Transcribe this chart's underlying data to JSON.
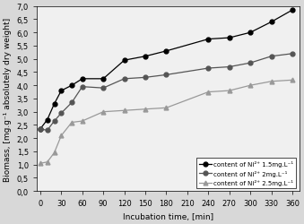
{
  "series": [
    {
      "label": "content of Ni²⁺ 1.5mg.L⁻¹",
      "color": "#000000",
      "marker": "o",
      "markersize": 3.5,
      "x": [
        0,
        10,
        20,
        30,
        45,
        60,
        90,
        120,
        150,
        180,
        240,
        270,
        300,
        330,
        360
      ],
      "y": [
        2.35,
        2.7,
        3.3,
        3.8,
        4.0,
        4.25,
        4.25,
        4.95,
        5.1,
        5.3,
        5.75,
        5.8,
        6.0,
        6.4,
        6.85
      ]
    },
    {
      "label": "content of Ni²⁺ 2mg.L⁻¹",
      "color": "#555555",
      "marker": "o",
      "markersize": 3.5,
      "x": [
        0,
        10,
        20,
        30,
        45,
        60,
        90,
        120,
        150,
        180,
        240,
        270,
        300,
        330,
        360
      ],
      "y": [
        2.35,
        2.3,
        2.65,
        2.95,
        3.35,
        3.95,
        3.9,
        4.25,
        4.3,
        4.4,
        4.65,
        4.7,
        4.85,
        5.1,
        5.2
      ]
    },
    {
      "label": "content of Ni²⁺ 2.5mg.L⁻¹",
      "color": "#999999",
      "marker": "^",
      "markersize": 3.5,
      "x": [
        0,
        10,
        20,
        30,
        45,
        60,
        90,
        120,
        150,
        180,
        240,
        270,
        300,
        330,
        360
      ],
      "y": [
        1.05,
        1.1,
        1.45,
        2.1,
        2.6,
        2.65,
        3.0,
        3.05,
        3.1,
        3.15,
        3.75,
        3.8,
        4.0,
        4.15,
        4.2
      ]
    }
  ],
  "xlabel": "Incubation time, [min]",
  "ylabel": "Biomass, [mg.g⁻¹ absolutely dry weight]",
  "xlim": [
    -5,
    370
  ],
  "ylim": [
    0.0,
    7.0
  ],
  "xticks": [
    0,
    30,
    60,
    90,
    120,
    150,
    180,
    210,
    240,
    270,
    300,
    330,
    360
  ],
  "yticks": [
    0.0,
    0.5,
    1.0,
    1.5,
    2.0,
    2.5,
    3.0,
    3.5,
    4.0,
    4.5,
    5.0,
    5.5,
    6.0,
    6.5,
    7.0
  ],
  "background_color": "#f0f0f0",
  "label_fontsize": 6.5,
  "tick_fontsize": 6
}
